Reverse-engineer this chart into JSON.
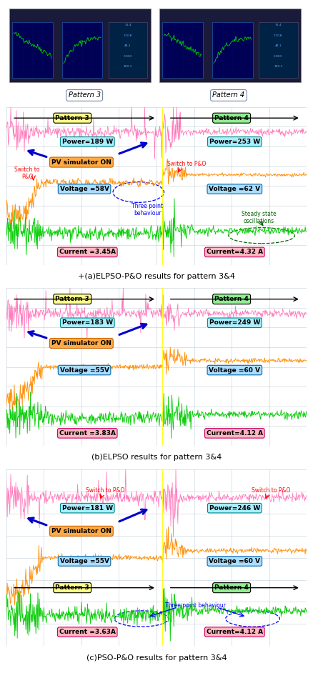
{
  "section_a_caption": "+(a)ELPSO-P&O results for pattern 3&4",
  "section_b_caption": "(b)ELPSO results for pattern 3&4",
  "section_c_caption": "(c)PSO-P&O results for pattern 3&4",
  "panel_a": {
    "pattern3_label": "Pattern 3",
    "pattern4_label": "Pattern 4",
    "power3": "Power=189 W",
    "power4": "Power=253 W",
    "voltage3": "Voltage =58V",
    "voltage4": "Voltage =62 V",
    "current3": "Current =3.45A",
    "current4": "Current=4.32 A"
  },
  "panel_b": {
    "pattern3_label": "Pattern 3",
    "pattern4_label": "Pattern 4",
    "power3": "Power=183 W",
    "power4": "Power=249 W",
    "voltage3": "Voltage =55V",
    "voltage4": "Voltage =60 V",
    "current3": "Current =3.83A",
    "current4": "Current=4.12 A"
  },
  "panel_c": {
    "pattern3_label": "Pattern 3",
    "pattern4_label": "Pattern 4",
    "power3": "Power=181 W",
    "power4": "Power=246 W",
    "voltage3": "Voltage =55V",
    "voltage4": "Voltage =60 V",
    "current3": "Current =3.63A",
    "current4": "Current=4.12 A"
  },
  "colors": {
    "pink_trace": "#ff69b4",
    "orange_trace": "#ff8c00",
    "green_trace": "#00cc00",
    "yellow_label_bg": "#ffff88",
    "green_label_bg": "#90ee90",
    "cyan_box_bg": "#aaeeff",
    "blue_box_bg": "#aaddff",
    "pink_box_bg": "#ffb6c1",
    "orange_box_bg": "#ffaa44",
    "blue_arrow": "#0000cc",
    "red_text": "#cc0000",
    "dark_green": "#006400"
  }
}
